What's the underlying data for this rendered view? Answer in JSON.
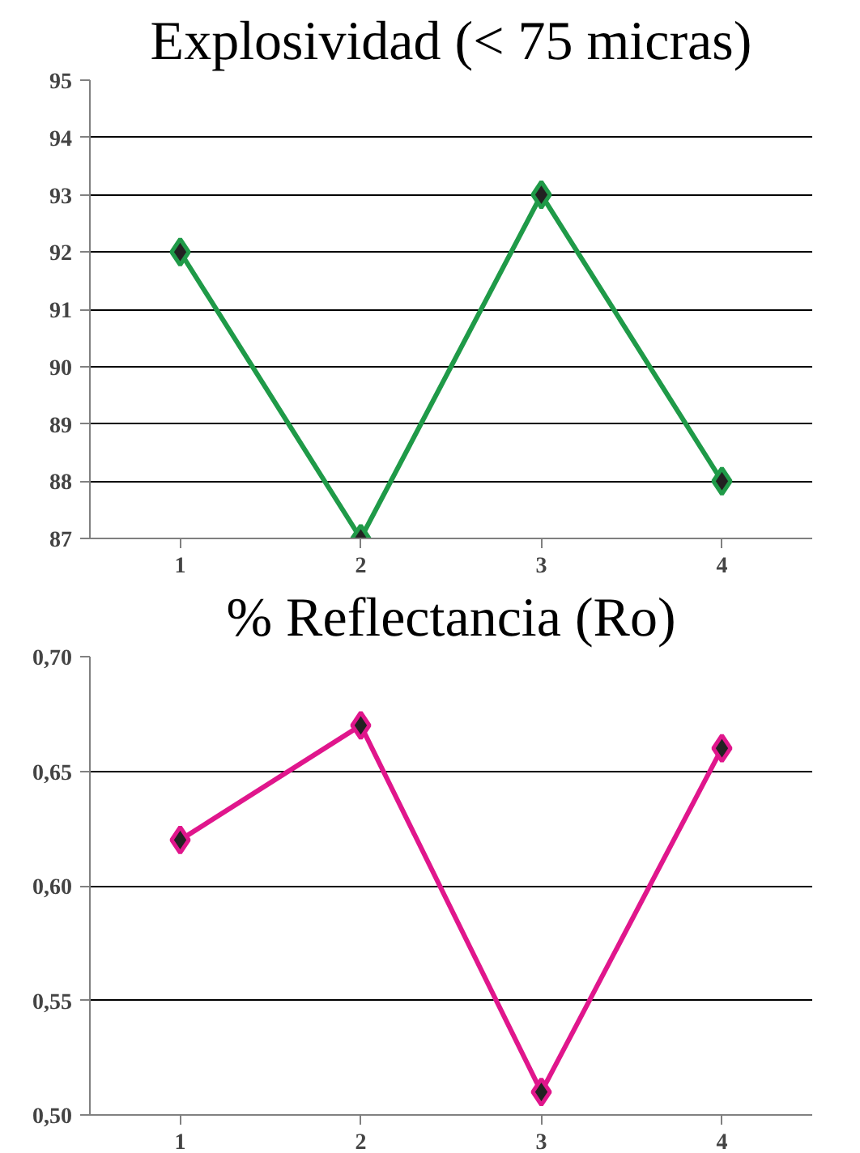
{
  "chart_data": [
    {
      "type": "line",
      "title": "Explosividad (< 75 micras)",
      "categories": [
        "1",
        "2",
        "3",
        "4"
      ],
      "series": [
        {
          "color": "#1f9a48",
          "values": [
            92,
            87,
            93,
            88
          ]
        }
      ],
      "ylim": [
        87,
        95
      ],
      "yticks": [
        87,
        88,
        89,
        90,
        91,
        92,
        93,
        94,
        95
      ],
      "grid": "y",
      "marker": "diamond",
      "line_style": "solid"
    },
    {
      "type": "line",
      "title": "% Reflectancia (Ro)",
      "categories": [
        "1",
        "2",
        "3",
        "4"
      ],
      "series": [
        {
          "color": "#e0168c",
          "values": [
            0.62,
            0.67,
            0.51,
            0.66
          ]
        }
      ],
      "ylim": [
        0.5,
        0.7
      ],
      "yticks": [
        {
          "value": 0.5,
          "label": "0,50"
        },
        {
          "value": 0.55,
          "label": "0,55"
        },
        {
          "value": 0.6,
          "label": "0,60"
        },
        {
          "value": 0.65,
          "label": "0,65"
        },
        {
          "value": 0.7,
          "label": "0,70"
        }
      ],
      "grid": "y",
      "marker": "diamond",
      "line_style": "solid"
    }
  ]
}
